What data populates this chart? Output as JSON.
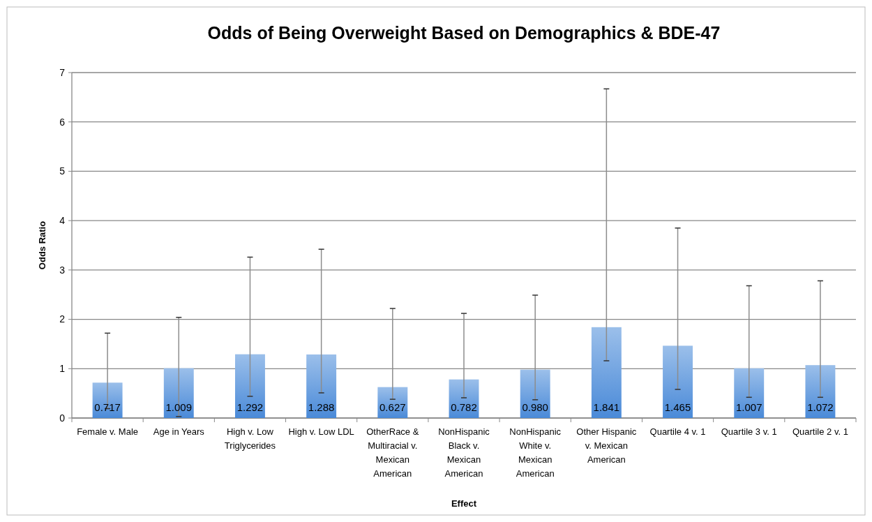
{
  "chart_data": {
    "type": "bar",
    "title": "Odds of Being Overweight Based on Demographics & BDE-47",
    "xlabel": "Effect",
    "ylabel": "Odds Ratio",
    "categories": [
      "Female v. Male",
      "Age in Years",
      "High v. Low Triglycerides",
      "High v. Low LDL",
      "OtherRace & Multiracial v. Mexican American",
      "NonHispanic Black v. Mexican American",
      "NonHispanic White v. Mexican American",
      "Other Hispanic v. Mexican American",
      "Quartile 4 v. 1",
      "Quartile 3 v. 1",
      "Quartile 2 v. 1"
    ],
    "values": [
      0.717,
      1.009,
      1.292,
      1.288,
      0.627,
      0.782,
      0.98,
      1.841,
      1.465,
      1.007,
      1.072
    ],
    "errors": [
      [
        0.19,
        1.72
      ],
      [
        0.03,
        2.04
      ],
      [
        0.44,
        3.26
      ],
      [
        0.51,
        3.42
      ],
      [
        0.38,
        2.22
      ],
      [
        0.41,
        2.12
      ],
      [
        0.37,
        2.49
      ],
      [
        1.16,
        6.67
      ],
      [
        0.58,
        3.85
      ],
      [
        0.42,
        2.68
      ],
      [
        0.42,
        2.78
      ]
    ],
    "value_labels": [
      "0.717",
      "1.009",
      "1.292",
      "1.288",
      "0.627",
      "0.782",
      "0.980",
      "1.841",
      "1.465",
      "1.007",
      "1.072"
    ],
    "color": "#4a8ad8",
    "grid": "y",
    "ylim": [
      0,
      7
    ],
    "yticks": [
      0,
      1,
      2,
      3,
      4,
      5,
      6,
      7
    ]
  }
}
